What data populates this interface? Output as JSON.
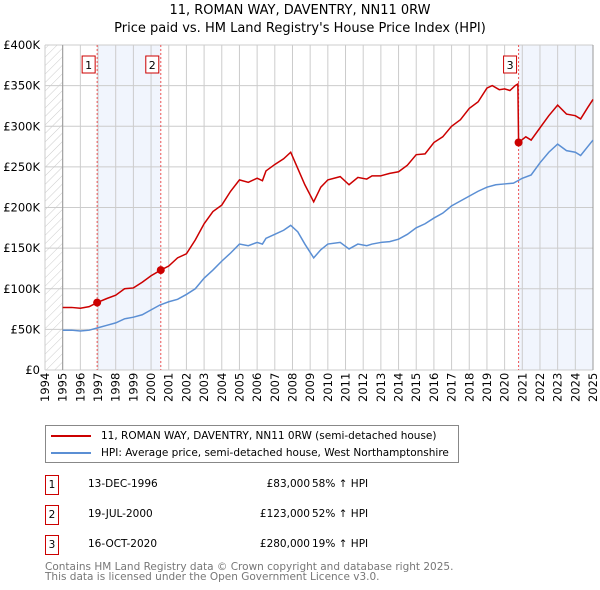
{
  "title": "11, ROMAN WAY, DAVENTRY, NN11 0RW",
  "subtitle": "Price paid vs. HM Land Registry's House Price Index (HPI)",
  "chart_data": {
    "type": "line",
    "xlim": [
      1994,
      2025
    ],
    "ylim": [
      0,
      400000
    ],
    "yticks": [
      {
        "v": 0,
        "label": "£0"
      },
      {
        "v": 50000,
        "label": "£50K"
      },
      {
        "v": 100000,
        "label": "£100K"
      },
      {
        "v": 150000,
        "label": "£150K"
      },
      {
        "v": 200000,
        "label": "£200K"
      },
      {
        "v": 250000,
        "label": "£250K"
      },
      {
        "v": 300000,
        "label": "£300K"
      },
      {
        "v": 350000,
        "label": "£350K"
      },
      {
        "v": 400000,
        "label": "£400K"
      }
    ],
    "xticks": [
      "1994",
      "1995",
      "1996",
      "1997",
      "1998",
      "1999",
      "2000",
      "2001",
      "2002",
      "2003",
      "2004",
      "2005",
      "2006",
      "2007",
      "2008",
      "2009",
      "2010",
      "2011",
      "2012",
      "2013",
      "2014",
      "2015",
      "2016",
      "2017",
      "2018",
      "2019",
      "2020",
      "2021",
      "2022",
      "2023",
      "2024",
      "2025"
    ],
    "grid": true,
    "series": [
      {
        "name": "11, ROMAN WAY, DAVENTRY, NN11 0RW (semi-detached house)",
        "color": "#cc0000",
        "x": [
          1995,
          1995.5,
          1996,
          1996.5,
          1996.95,
          1997.5,
          1998,
          1998.5,
          1999,
          1999.5,
          2000,
          2000.55,
          2001,
          2001.5,
          2002,
          2002.5,
          2003,
          2003.5,
          2004,
          2004.5,
          2005,
          2005.5,
          2006,
          2006.3,
          2006.5,
          2007,
          2007.5,
          2007.9,
          2008.2,
          2008.7,
          2009.2,
          2009.6,
          2010,
          2010.7,
          2011.2,
          2011.7,
          2012.2,
          2012.5,
          2013,
          2013.5,
          2014,
          2014.5,
          2015,
          2015.5,
          2016,
          2016.5,
          2017,
          2017.5,
          2018,
          2018.5,
          2019,
          2019.3,
          2019.7,
          2020,
          2020.3,
          2020.6,
          2020.75,
          2020.79,
          2021.2,
          2021.5,
          2022,
          2022.5,
          2023,
          2023.5,
          2024,
          2024.3,
          2024.7,
          2025
        ],
        "y": [
          77000,
          77000,
          76000,
          78000,
          83000,
          88000,
          92000,
          100000,
          101000,
          108000,
          116000,
          123000,
          128000,
          138000,
          143000,
          160000,
          180000,
          195000,
          203000,
          220000,
          234000,
          231000,
          236000,
          233000,
          245000,
          253000,
          260000,
          268000,
          253000,
          228000,
          207000,
          225000,
          234000,
          238000,
          228000,
          237000,
          235000,
          239000,
          239000,
          242000,
          244000,
          252000,
          265000,
          266000,
          280000,
          287000,
          300000,
          308000,
          322000,
          330000,
          347000,
          350000,
          345000,
          346000,
          344000,
          350000,
          352000,
          280000,
          287000,
          283000,
          298000,
          313000,
          326000,
          315000,
          313000,
          309000,
          323000,
          333000
        ]
      },
      {
        "name": "HPI: Average price, semi-detached house, West Northamptonshire",
        "color": "#5b8fd4",
        "x": [
          1995,
          1995.5,
          1996,
          1996.5,
          1997,
          1997.5,
          1998,
          1998.5,
          1999,
          1999.5,
          2000,
          2000.5,
          2001,
          2001.5,
          2002,
          2002.5,
          2003,
          2003.5,
          2004,
          2004.5,
          2005,
          2005.5,
          2006,
          2006.3,
          2006.5,
          2007,
          2007.5,
          2007.9,
          2008.3,
          2008.7,
          2009.2,
          2009.6,
          2010,
          2010.7,
          2011.2,
          2011.7,
          2012.2,
          2012.5,
          2013,
          2013.5,
          2014,
          2014.5,
          2015,
          2015.5,
          2016,
          2016.5,
          2017,
          2017.5,
          2018,
          2018.5,
          2019,
          2019.5,
          2020,
          2020.5,
          2021,
          2021.5,
          2022,
          2022.5,
          2023,
          2023.5,
          2024,
          2024.3,
          2025
        ],
        "y": [
          49000,
          49000,
          48000,
          49000,
          52000,
          55000,
          58000,
          63000,
          65000,
          68000,
          74000,
          80000,
          84000,
          87000,
          93000,
          100000,
          113000,
          123000,
          134000,
          144000,
          155000,
          153000,
          157000,
          155000,
          162000,
          167000,
          172000,
          178000,
          170000,
          155000,
          138000,
          148000,
          155000,
          157000,
          149000,
          155000,
          153000,
          155000,
          157000,
          158000,
          161000,
          167000,
          175000,
          180000,
          187000,
          193000,
          202000,
          208000,
          214000,
          220000,
          225000,
          228000,
          229000,
          230000,
          236000,
          240000,
          255000,
          268000,
          278000,
          270000,
          268000,
          264000,
          283000
        ]
      }
    ],
    "annotations": [
      {
        "label": "1",
        "x": 1996.95,
        "y": 83000
      },
      {
        "label": "2",
        "x": 2000.55,
        "y": 123000
      },
      {
        "label": "3",
        "x": 2020.79,
        "y": 280000
      }
    ],
    "shaded": [
      [
        1996.95,
        2000.55
      ],
      [
        2020.79,
        2025
      ]
    ],
    "legend_placement": "below"
  },
  "legend": {
    "items": [
      "11, ROMAN WAY, DAVENTRY, NN11 0RW (semi-detached house)",
      "HPI: Average price, semi-detached house, West Northamptonshire"
    ]
  },
  "sales": [
    {
      "num": "1",
      "date": "13-DEC-1996",
      "price": "£83,000",
      "hpi": "58% ↑ HPI"
    },
    {
      "num": "2",
      "date": "19-JUL-2000",
      "price": "£123,000",
      "hpi": "52% ↑ HPI"
    },
    {
      "num": "3",
      "date": "16-OCT-2020",
      "price": "£280,000",
      "hpi": "19% ↑ HPI"
    }
  ],
  "footer": {
    "line1": "Contains HM Land Registry data © Crown copyright and database right 2025.",
    "line2": "This data is licensed under the Open Government Licence v3.0."
  }
}
